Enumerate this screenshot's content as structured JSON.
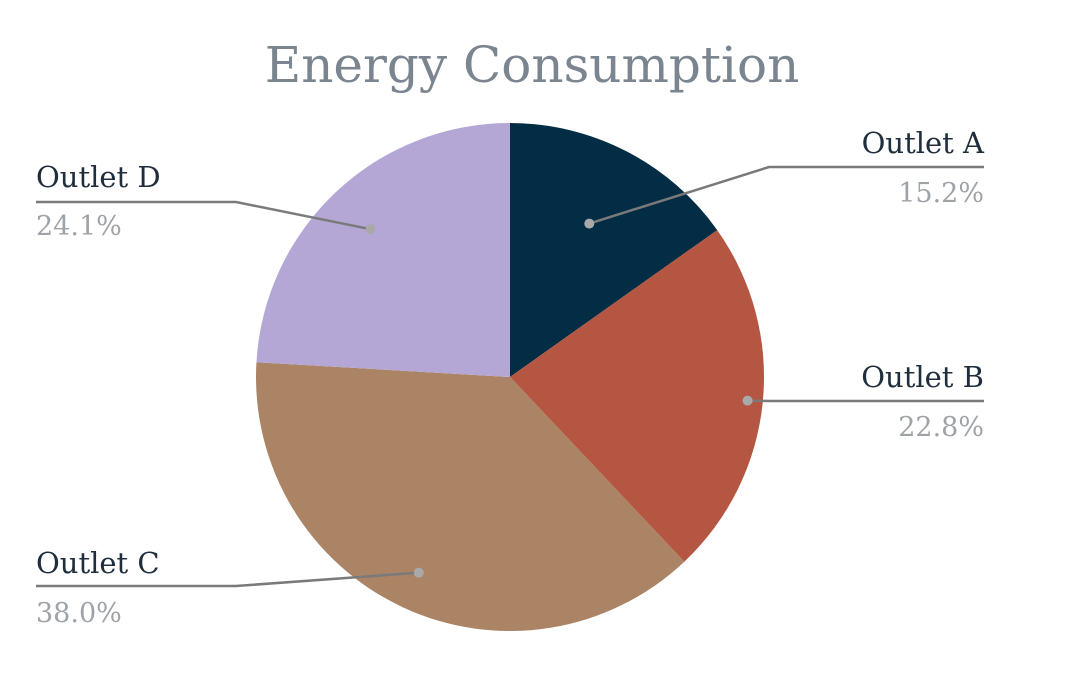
{
  "chart_data": {
    "type": "pie",
    "title": "Energy Consumption",
    "slices": [
      {
        "label": "Outlet A",
        "value": 15.2,
        "value_label": "15.2%",
        "color": "#032d45"
      },
      {
        "label": "Outlet B",
        "value": 22.8,
        "value_label": "22.8%",
        "color": "#b55642"
      },
      {
        "label": "Outlet C",
        "value": 38.0,
        "value_label": "38.0%",
        "color": "#ab8365"
      },
      {
        "label": "Outlet D",
        "value": 24.1,
        "value_label": "24.1%",
        "color": "#b4a7d5"
      }
    ],
    "start_angle": "12 o'clock",
    "direction": "clockwise",
    "legend": "none",
    "data_labels": "outside with leader lines"
  }
}
